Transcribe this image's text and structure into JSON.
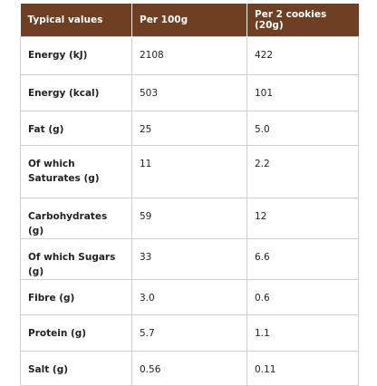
{
  "table": {
    "header": [
      "Typical values",
      "Per 100g",
      "Per 2 cookies (20g)"
    ],
    "rows": [
      [
        "Energy (kJ)",
        "2108",
        "422"
      ],
      [
        "Energy (kcal)",
        "503",
        "101"
      ],
      [
        "Fat (g)",
        "25",
        "5.0"
      ],
      [
        "Of which Saturates (g)",
        "11",
        "2.2"
      ],
      [
        "Carbohydrates (g)",
        "59",
        "12"
      ],
      [
        "Of which Sugars (g)",
        "33",
        "6.6"
      ],
      [
        "Fibre (g)",
        "3.0",
        "0.6"
      ],
      [
        "Protein (g)",
        "5.7",
        "1.1"
      ],
      [
        "Salt (g)",
        "0.56",
        "0.11"
      ]
    ]
  }
}
